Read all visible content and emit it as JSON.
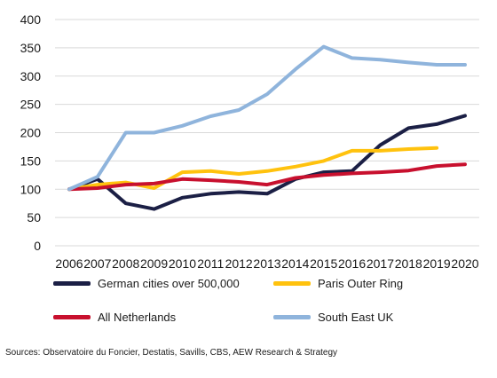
{
  "chart_data": {
    "type": "line",
    "title": "",
    "xlabel": "",
    "ylabel": "",
    "x": [
      "2006",
      "2007",
      "2008",
      "2009",
      "2010",
      "2011",
      "2012",
      "2013",
      "2014",
      "2015",
      "2016",
      "2017",
      "2018",
      "2019",
      "2020"
    ],
    "ylim": [
      0,
      400
    ],
    "yticks": [
      0,
      50,
      100,
      150,
      200,
      250,
      300,
      350,
      400
    ],
    "grid": true,
    "legend_position": "bottom",
    "series": [
      {
        "name": "German cities over 500,000",
        "color": "#1b1f45",
        "values": [
          100,
          118,
          75,
          65,
          85,
          92,
          95,
          92,
          118,
          130,
          132,
          178,
          208,
          215,
          230
        ]
      },
      {
        "name": "Paris Outer Ring",
        "color": "#ffc20e",
        "values": [
          100,
          108,
          112,
          102,
          130,
          132,
          127,
          132,
          140,
          150,
          168,
          168,
          171,
          173,
          null
        ]
      },
      {
        "name": "All Netherlands",
        "color": "#c8102e",
        "values": [
          100,
          102,
          108,
          110,
          118,
          116,
          113,
          108,
          120,
          125,
          128,
          130,
          133,
          141,
          144
        ]
      },
      {
        "name": "South East UK",
        "color": "#8fb4dc",
        "values": [
          100,
          122,
          200,
          200,
          212,
          229,
          240,
          268,
          312,
          352,
          332,
          329,
          324,
          320,
          320
        ]
      }
    ]
  },
  "source": "Sources: Observatoire du Foncier, Destatis, Savills, CBS, AEW Research & Strategy"
}
